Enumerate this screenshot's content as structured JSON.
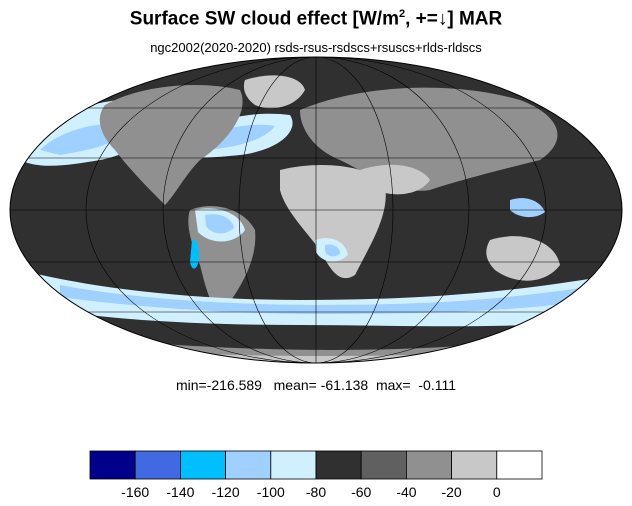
{
  "header": {
    "title_main": "Surface SW cloud effect [W/m",
    "title_sup": "2",
    "title_tail": ", +=↓]  MAR",
    "subtitle": "ngc2002(2020-2020)  rsds-rsus-rsdscs+rsuscs+rlds-rldscs"
  },
  "stats": {
    "text": "min=-216.589   mean= -61.138  max=  -0.111"
  },
  "colorbar": {
    "colors": [
      "#00008b",
      "#4169e1",
      "#00bfff",
      "#a0d0ff",
      "#d0f0ff",
      "#303030",
      "#606060",
      "#909090",
      "#c8c8c8",
      "#ffffff"
    ],
    "labels": [
      "-160",
      "-140",
      "-120",
      "-100",
      "-80",
      "-60",
      "-40",
      "-20",
      "0"
    ]
  },
  "map_colors": {
    "ocean_dark": "#303030",
    "ocean_mid": "#606060",
    "land_light": "#c8c8c8",
    "land_mid": "#909090",
    "cloud_light": "#d0f0ff",
    "cloud_mid": "#a0d0ff",
    "cloud_strong": "#00bfff",
    "cloud_deep": "#4169e1",
    "cloud_max": "#00008b",
    "grid": "#000000"
  }
}
